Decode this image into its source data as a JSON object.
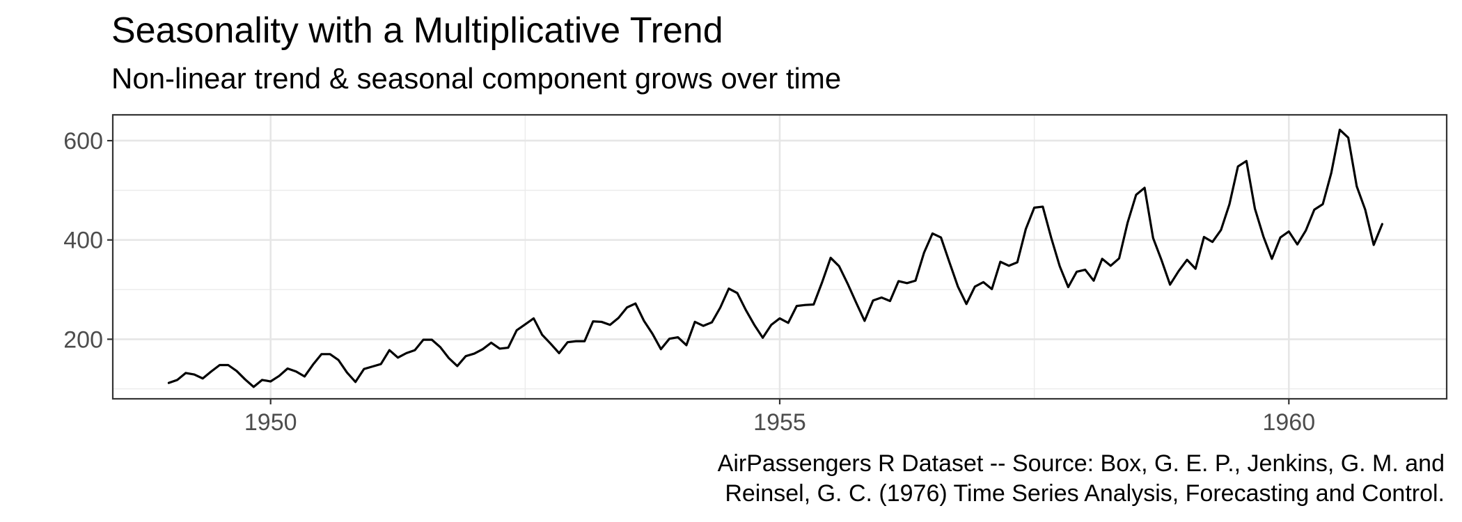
{
  "chart_data": {
    "type": "line",
    "title": "Seasonality with a Multiplicative Trend",
    "subtitle": "Non-linear trend & seasonal component grows over time",
    "xlabel": "",
    "ylabel": "",
    "caption": [
      "AirPassengers R Dataset -- Source: Box, G. E. P., Jenkins, G. M. and",
      "Reinsel, G. C. (1976) Time Series Analysis, Forecasting and Control."
    ],
    "xlim": [
      1948.45,
      1961.55
    ],
    "ylim": [
      80,
      652
    ],
    "xticks": [
      1950,
      1955,
      1960
    ],
    "xtick_labels": [
      "1950",
      "1955",
      "1960"
    ],
    "yticks": [
      200,
      400,
      600
    ],
    "ytick_labels": [
      "200",
      "400",
      "600"
    ],
    "grid": true,
    "line_color": "#000000",
    "series": [
      {
        "start": 1949,
        "frequency": 12,
        "values": [
          112,
          118,
          132,
          129,
          121,
          135,
          148,
          148,
          136,
          119,
          104,
          118,
          115,
          126,
          141,
          135,
          125,
          149,
          170,
          170,
          158,
          133,
          114,
          140,
          145,
          150,
          178,
          163,
          172,
          178,
          199,
          199,
          184,
          162,
          146,
          166,
          171,
          180,
          193,
          181,
          183,
          218,
          230,
          242,
          209,
          191,
          172,
          194,
          196,
          196,
          236,
          235,
          229,
          243,
          264,
          272,
          237,
          211,
          180,
          201,
          204,
          188,
          235,
          227,
          234,
          264,
          302,
          293,
          259,
          229,
          203,
          229,
          242,
          233,
          267,
          269,
          270,
          315,
          364,
          347,
          312,
          274,
          237,
          278,
          284,
          277,
          317,
          313,
          318,
          374,
          413,
          405,
          355,
          306,
          271,
          306,
          315,
          301,
          356,
          348,
          355,
          422,
          465,
          467,
          404,
          347,
          305,
          336,
          340,
          318,
          362,
          348,
          363,
          435,
          491,
          505,
          404,
          359,
          310,
          337,
          360,
          342,
          406,
          396,
          420,
          472,
          548,
          559,
          463,
          407,
          362,
          405,
          417,
          391,
          419,
          461,
          472,
          535,
          622,
          606,
          508,
          461,
          390,
          432
        ]
      }
    ]
  }
}
